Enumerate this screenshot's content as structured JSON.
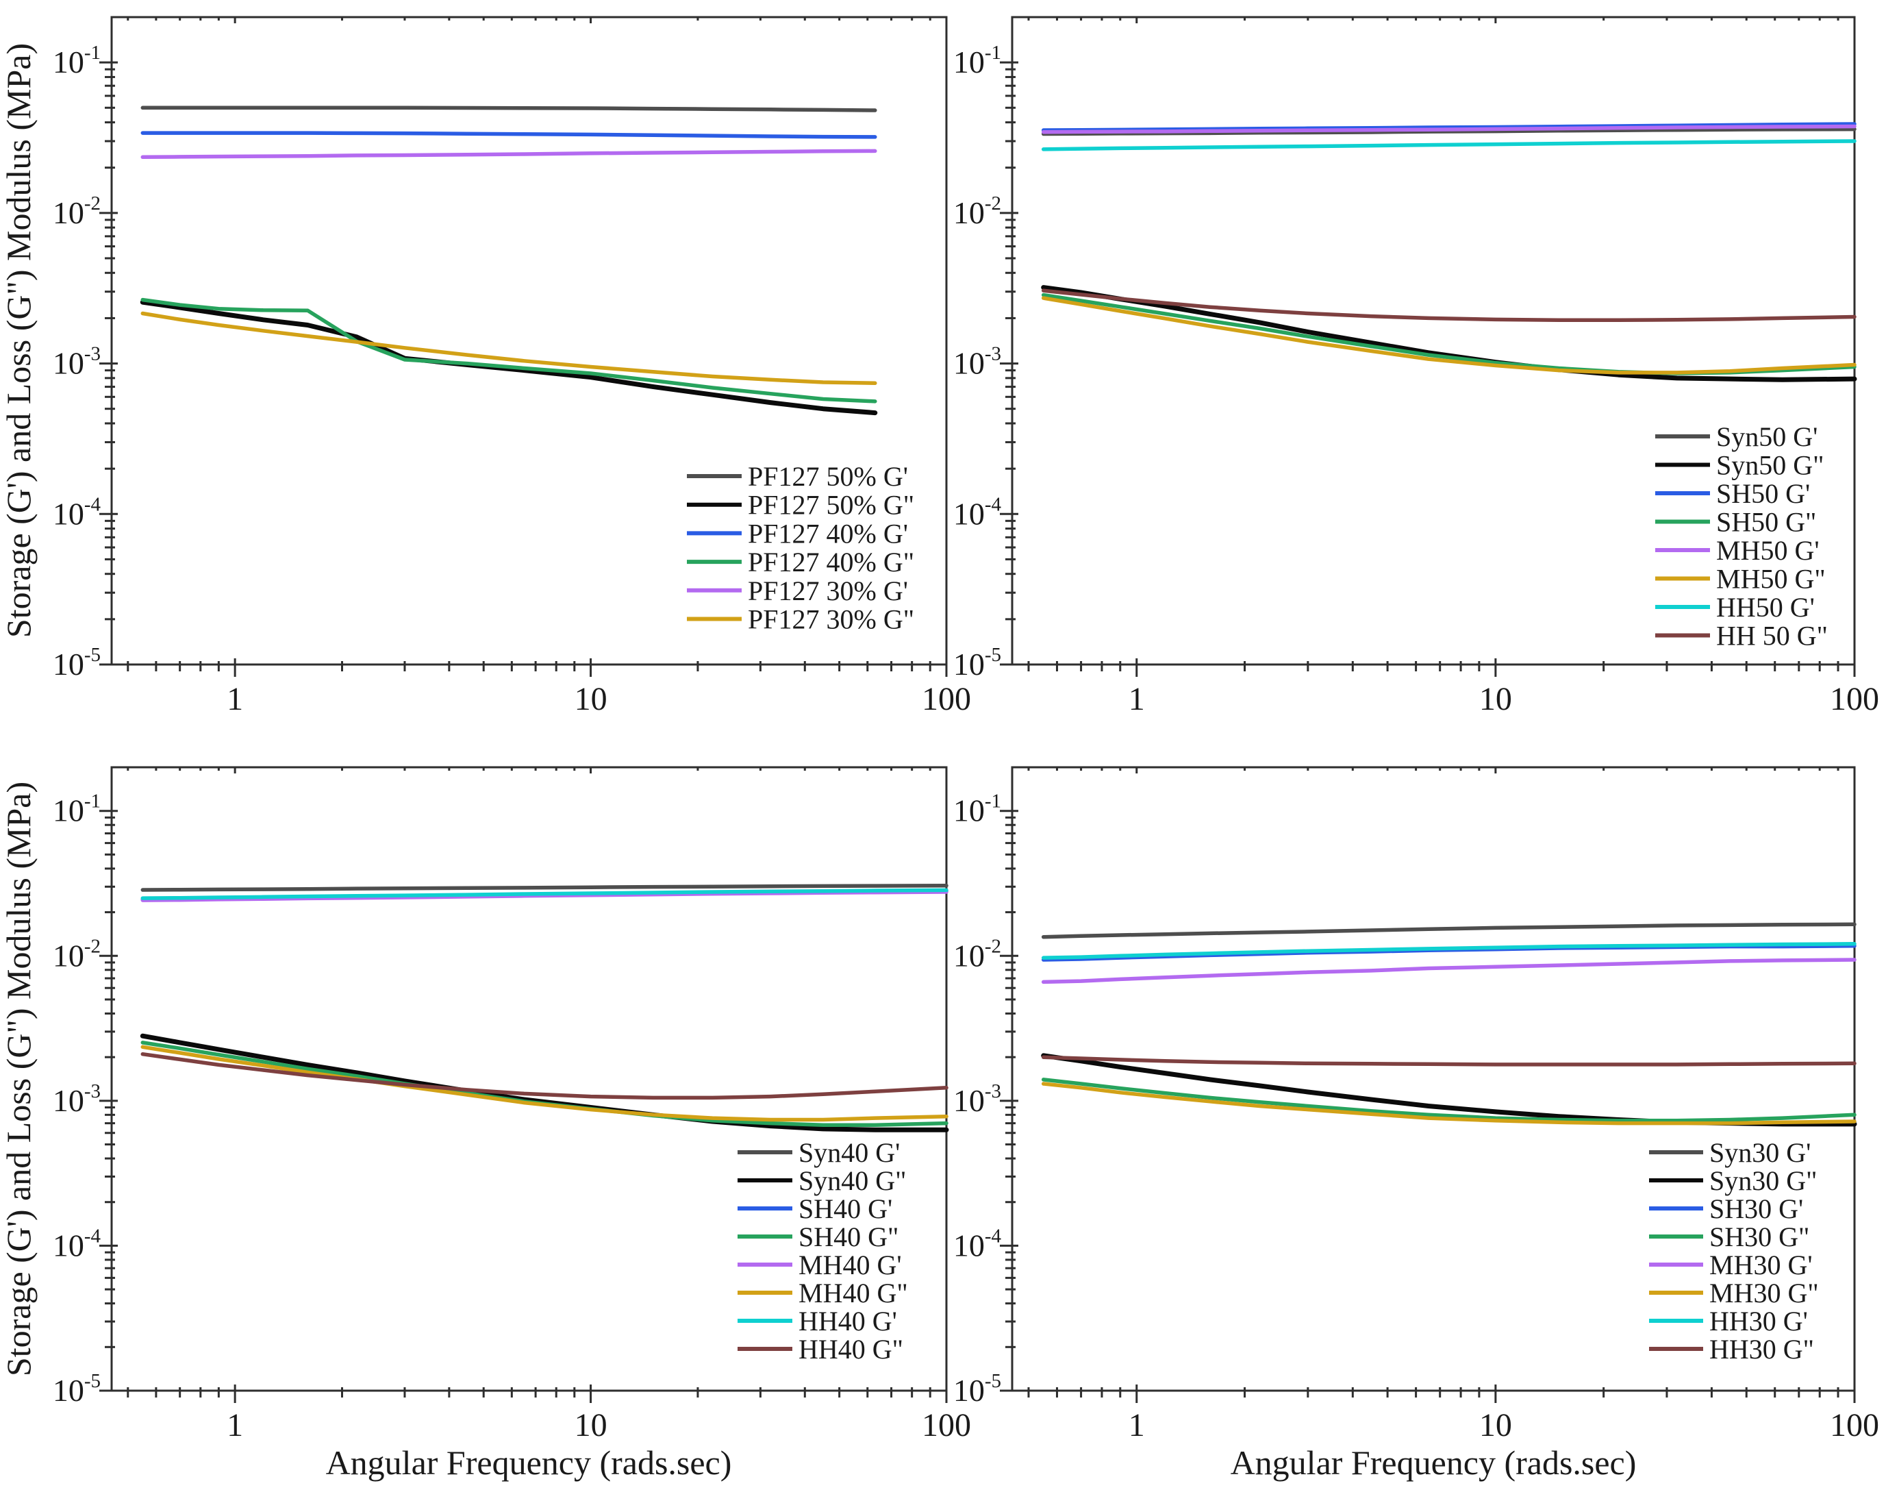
{
  "figure": {
    "ylabel": "Storage (G') and Loss (G\") Modulus (MPa)",
    "xlabel": "Angular Frequency (rads.sec)",
    "background": "#ffffff",
    "spine_color": "#2e2e2e",
    "text_color": "#1a1a1a"
  },
  "chart_data": [
    {
      "type": "line",
      "panel": "top-left",
      "xscale": "log",
      "yscale": "log",
      "xlim": [
        0.45,
        100
      ],
      "ylim": [
        1e-05,
        0.2
      ],
      "grid": false,
      "legend_position": "lower-right",
      "xticks": [
        {
          "v": 1,
          "label": "1"
        },
        {
          "v": 10,
          "label": "10"
        },
        {
          "v": 100,
          "label": "100"
        }
      ],
      "yticks": [
        {
          "v": 0.1,
          "label": "10^-1"
        },
        {
          "v": 0.01,
          "label": "10^-2"
        },
        {
          "v": 0.001,
          "label": "10^-3"
        },
        {
          "v": 0.0001,
          "label": "10^-4"
        },
        {
          "v": 1e-05,
          "label": "10^-5"
        }
      ],
      "x": [
        0.55,
        0.7,
        0.9,
        1.2,
        1.6,
        2.2,
        3,
        4.5,
        6.5,
        10,
        15,
        22,
        32,
        45,
        63
      ],
      "series": [
        {
          "name": "PF127 50% G'",
          "color": "#4e4e4e",
          "values": [
            0.05,
            0.05,
            0.05,
            0.05,
            0.05,
            0.05,
            0.05,
            0.0499,
            0.0498,
            0.0496,
            0.0493,
            0.049,
            0.0487,
            0.0484,
            0.0481
          ]
        },
        {
          "name": "PF127 50% G\"",
          "color": "#0a0a0a",
          "values": [
            0.00255,
            0.00235,
            0.00215,
            0.00195,
            0.0018,
            0.0015,
            0.00108,
            0.00098,
            0.0009,
            0.00081,
            0.0007,
            0.00062,
            0.00055,
            0.0005,
            0.00047
          ]
        },
        {
          "name": "PF127 40% G'",
          "color": "#2a5ce4",
          "values": [
            0.034,
            0.034,
            0.034,
            0.034,
            0.034,
            0.0339,
            0.0338,
            0.0336,
            0.0334,
            0.0332,
            0.0329,
            0.0326,
            0.0323,
            0.0321,
            0.032
          ]
        },
        {
          "name": "PF127 40% G\"",
          "color": "#27a35d",
          "values": [
            0.00265,
            0.00245,
            0.00231,
            0.00226,
            0.00225,
            0.0014,
            0.00106,
            0.001,
            0.00093,
            0.00086,
            0.00077,
            0.00069,
            0.00063,
            0.00058,
            0.00056
          ]
        },
        {
          "name": "PF127 30% G'",
          "color": "#b36af0",
          "values": [
            0.0235,
            0.0236,
            0.0237,
            0.0238,
            0.0239,
            0.0241,
            0.0242,
            0.0244,
            0.0246,
            0.0249,
            0.0251,
            0.0253,
            0.0255,
            0.0257,
            0.0258
          ]
        },
        {
          "name": "PF127 30% G\"",
          "color": "#d2a117",
          "values": [
            0.00215,
            0.00196,
            0.0018,
            0.00165,
            0.00152,
            0.00139,
            0.00127,
            0.00114,
            0.00104,
            0.00095,
            0.00088,
            0.00082,
            0.00078,
            0.00075,
            0.00074
          ]
        }
      ]
    },
    {
      "type": "line",
      "panel": "top-right",
      "xscale": "log",
      "yscale": "log",
      "xlim": [
        0.45,
        100
      ],
      "ylim": [
        1e-05,
        0.2
      ],
      "grid": false,
      "legend_position": "lower-right",
      "xticks": [
        {
          "v": 1,
          "label": "1"
        },
        {
          "v": 10,
          "label": "10"
        },
        {
          "v": 100,
          "label": "100"
        }
      ],
      "yticks": [
        {
          "v": 0.1,
          "label": "10^-1"
        },
        {
          "v": 0.01,
          "label": "10^-2"
        },
        {
          "v": 0.001,
          "label": "10^-3"
        },
        {
          "v": 0.0001,
          "label": "10^-4"
        },
        {
          "v": 1e-05,
          "label": "10^-5"
        }
      ],
      "x": [
        0.55,
        0.7,
        0.9,
        1.2,
        1.6,
        2.2,
        3,
        4.5,
        6.5,
        10,
        15,
        22,
        32,
        45,
        63,
        100
      ],
      "series": [
        {
          "name": "Syn50 G'",
          "color": "#4e4e4e",
          "values": [
            0.0335,
            0.0336,
            0.0337,
            0.0338,
            0.0339,
            0.0341,
            0.0342,
            0.0344,
            0.0347,
            0.0349,
            0.0352,
            0.0354,
            0.0356,
            0.0358,
            0.0359,
            0.036
          ]
        },
        {
          "name": "Syn50 G\"",
          "color": "#0a0a0a",
          "values": [
            0.0032,
            0.00296,
            0.00268,
            0.0024,
            0.00213,
            0.00187,
            0.00162,
            0.00137,
            0.00118,
            0.00102,
            0.00091,
            0.00084,
            0.0008,
            0.00079,
            0.00078,
            0.00079
          ]
        },
        {
          "name": "SH50 G'",
          "color": "#2a5ce4",
          "values": [
            0.0355,
            0.0356,
            0.0357,
            0.0359,
            0.0361,
            0.0363,
            0.0365,
            0.0367,
            0.037,
            0.0372,
            0.0375,
            0.0378,
            0.0381,
            0.0384,
            0.0387,
            0.039
          ]
        },
        {
          "name": "SH50 G\"",
          "color": "#27a35d",
          "values": [
            0.00285,
            0.00261,
            0.00238,
            0.00214,
            0.00192,
            0.00171,
            0.00151,
            0.0013,
            0.00114,
            0.00101,
            0.00093,
            0.00088,
            0.00086,
            0.00087,
            0.0009,
            0.00095
          ]
        },
        {
          "name": "MH50 G'",
          "color": "#b36af0",
          "values": [
            0.0345,
            0.0346,
            0.0347,
            0.0348,
            0.035,
            0.0352,
            0.0354,
            0.0356,
            0.0358,
            0.0361,
            0.0364,
            0.0367,
            0.037,
            0.0372,
            0.0374,
            0.0376
          ]
        },
        {
          "name": "MH50 G\"",
          "color": "#d2a117",
          "values": [
            0.00272,
            0.00247,
            0.00223,
            0.00199,
            0.00177,
            0.00157,
            0.00139,
            0.00121,
            0.00107,
            0.00097,
            0.0009,
            0.00087,
            0.00087,
            0.00089,
            0.00093,
            0.00098
          ]
        },
        {
          "name": "HH50 G'",
          "color": "#0fd0d0",
          "values": [
            0.0265,
            0.0267,
            0.0269,
            0.0271,
            0.0273,
            0.0275,
            0.0277,
            0.028,
            0.0283,
            0.0286,
            0.0289,
            0.0292,
            0.0294,
            0.0296,
            0.0298,
            0.03
          ]
        },
        {
          "name": "HH 50 G\"",
          "color": "#7e4040",
          "values": [
            0.00305,
            0.00287,
            0.00269,
            0.00252,
            0.00237,
            0.00225,
            0.00215,
            0.00206,
            0.002,
            0.00196,
            0.00194,
            0.00194,
            0.00195,
            0.00197,
            0.002,
            0.00204
          ]
        }
      ]
    },
    {
      "type": "line",
      "panel": "bottom-left",
      "xscale": "log",
      "yscale": "log",
      "xlim": [
        0.45,
        100
      ],
      "ylim": [
        1e-05,
        0.2
      ],
      "grid": false,
      "legend_position": "lower-right",
      "xticks": [
        {
          "v": 1,
          "label": "1"
        },
        {
          "v": 10,
          "label": "10"
        },
        {
          "v": 100,
          "label": "100"
        }
      ],
      "yticks": [
        {
          "v": 0.1,
          "label": "10^-1"
        },
        {
          "v": 0.01,
          "label": "10^-2"
        },
        {
          "v": 0.001,
          "label": "10^-3"
        },
        {
          "v": 0.0001,
          "label": "10^-4"
        },
        {
          "v": 1e-05,
          "label": "10^-5"
        }
      ],
      "x": [
        0.55,
        0.7,
        0.9,
        1.2,
        1.6,
        2.2,
        3,
        4.5,
        6.5,
        10,
        15,
        22,
        32,
        45,
        63,
        100
      ],
      "series": [
        {
          "name": "Syn40 G'",
          "color": "#4e4e4e",
          "values": [
            0.0285,
            0.0286,
            0.0287,
            0.0288,
            0.0289,
            0.0291,
            0.0292,
            0.0294,
            0.0295,
            0.0297,
            0.0299,
            0.03,
            0.0302,
            0.0303,
            0.0304,
            0.0305
          ]
        },
        {
          "name": "Syn40 G\"",
          "color": "#0a0a0a",
          "values": [
            0.0028,
            0.00252,
            0.00226,
            0.002,
            0.00177,
            0.00156,
            0.00137,
            0.00117,
            0.00102,
            0.0009,
            0.0008,
            0.00072,
            0.00067,
            0.00064,
            0.00063,
            0.00063
          ]
        },
        {
          "name": "SH40 G'",
          "color": "#2a5ce4",
          "values": [
            0.0245,
            0.0246,
            0.0248,
            0.025,
            0.0252,
            0.0254,
            0.0256,
            0.0259,
            0.0262,
            0.0265,
            0.0268,
            0.0271,
            0.0274,
            0.0276,
            0.0278,
            0.028
          ]
        },
        {
          "name": "SH40 G\"",
          "color": "#27a35d",
          "values": [
            0.00252,
            0.0023,
            0.00208,
            0.00186,
            0.00166,
            0.00148,
            0.00131,
            0.00113,
            0.00099,
            0.00088,
            0.00079,
            0.00073,
            0.0007,
            0.00068,
            0.00068,
            0.0007
          ]
        },
        {
          "name": "MH40 G'",
          "color": "#b36af0",
          "values": [
            0.0242,
            0.0243,
            0.0245,
            0.0247,
            0.0249,
            0.0251,
            0.0253,
            0.0256,
            0.0259,
            0.0262,
            0.0265,
            0.0268,
            0.027,
            0.0272,
            0.0274,
            0.0276
          ]
        },
        {
          "name": "MH40 G\"",
          "color": "#d2a117",
          "values": [
            0.00235,
            0.00214,
            0.00194,
            0.00175,
            0.00157,
            0.00141,
            0.00126,
            0.0011,
            0.00097,
            0.00087,
            0.0008,
            0.00076,
            0.00074,
            0.00074,
            0.00076,
            0.00078
          ]
        },
        {
          "name": "HH40 G'",
          "color": "#0fd0d0",
          "values": [
            0.025,
            0.0251,
            0.0253,
            0.0255,
            0.0257,
            0.0259,
            0.0261,
            0.0264,
            0.0267,
            0.027,
            0.0273,
            0.0276,
            0.0278,
            0.028,
            0.0282,
            0.0284
          ]
        },
        {
          "name": "HH40 G\"",
          "color": "#7e4040",
          "values": [
            0.0021,
            0.00193,
            0.00177,
            0.00163,
            0.0015,
            0.00139,
            0.00129,
            0.00119,
            0.00112,
            0.00107,
            0.00105,
            0.00105,
            0.00107,
            0.00111,
            0.00116,
            0.00123
          ]
        }
      ]
    },
    {
      "type": "line",
      "panel": "bottom-right",
      "xscale": "log",
      "yscale": "log",
      "xlim": [
        0.45,
        100
      ],
      "ylim": [
        1e-05,
        0.2
      ],
      "grid": false,
      "legend_position": "lower-right",
      "xticks": [
        {
          "v": 1,
          "label": "1"
        },
        {
          "v": 10,
          "label": "10"
        },
        {
          "v": 100,
          "label": "100"
        }
      ],
      "yticks": [
        {
          "v": 0.1,
          "label": "10^-1"
        },
        {
          "v": 0.01,
          "label": "10^-2"
        },
        {
          "v": 0.001,
          "label": "10^-3"
        },
        {
          "v": 0.0001,
          "label": "10^-4"
        },
        {
          "v": 1e-05,
          "label": "10^-5"
        }
      ],
      "x": [
        0.55,
        0.7,
        0.9,
        1.2,
        1.6,
        2.2,
        3,
        4.5,
        6.5,
        10,
        15,
        22,
        32,
        45,
        63,
        100
      ],
      "series": [
        {
          "name": "Syn30 G'",
          "color": "#4e4e4e",
          "values": [
            0.0135,
            0.0137,
            0.0139,
            0.0141,
            0.0143,
            0.0145,
            0.0147,
            0.015,
            0.0153,
            0.0156,
            0.0158,
            0.016,
            0.0162,
            0.0163,
            0.0164,
            0.0165
          ]
        },
        {
          "name": "Syn30 G\"",
          "color": "#0a0a0a",
          "values": [
            0.00205,
            0.00188,
            0.00171,
            0.00155,
            0.0014,
            0.00127,
            0.00115,
            0.00102,
            0.00092,
            0.00084,
            0.00078,
            0.00074,
            0.00071,
            0.0007,
            0.00069,
            0.00069
          ]
        },
        {
          "name": "SH30 G'",
          "color": "#2a5ce4",
          "values": [
            0.0094,
            0.0095,
            0.0097,
            0.0099,
            0.0101,
            0.0103,
            0.0105,
            0.0107,
            0.0109,
            0.0111,
            0.0113,
            0.0114,
            0.0115,
            0.0116,
            0.0116,
            0.0117
          ]
        },
        {
          "name": "SH30 G\"",
          "color": "#27a35d",
          "values": [
            0.0014,
            0.00131,
            0.00122,
            0.00113,
            0.00105,
            0.00098,
            0.00092,
            0.00085,
            0.0008,
            0.00076,
            0.00074,
            0.00073,
            0.00073,
            0.00074,
            0.00076,
            0.0008
          ]
        },
        {
          "name": "MH30 G'",
          "color": "#b36af0",
          "values": [
            0.0066,
            0.0067,
            0.0069,
            0.0071,
            0.0073,
            0.0075,
            0.0077,
            0.0079,
            0.0082,
            0.0084,
            0.0086,
            0.0088,
            0.009,
            0.0092,
            0.0093,
            0.0094
          ]
        },
        {
          "name": "MH30 G\"",
          "color": "#d2a117",
          "values": [
            0.00131,
            0.00123,
            0.00114,
            0.00106,
            0.00099,
            0.00092,
            0.00087,
            0.00081,
            0.00076,
            0.00073,
            0.00071,
            0.0007,
            0.0007,
            0.0007,
            0.00071,
            0.00072
          ]
        },
        {
          "name": "HH30 G'",
          "color": "#0fd0d0",
          "values": [
            0.0097,
            0.0098,
            0.01,
            0.0102,
            0.0104,
            0.0106,
            0.0108,
            0.011,
            0.0112,
            0.0114,
            0.0116,
            0.0117,
            0.0118,
            0.0119,
            0.012,
            0.0121
          ]
        },
        {
          "name": "HH30 G\"",
          "color": "#7e4040",
          "values": [
            0.002,
            0.00196,
            0.00192,
            0.00188,
            0.00185,
            0.00183,
            0.00181,
            0.0018,
            0.00179,
            0.00178,
            0.00178,
            0.00178,
            0.00178,
            0.00179,
            0.0018,
            0.00181
          ]
        }
      ]
    }
  ]
}
